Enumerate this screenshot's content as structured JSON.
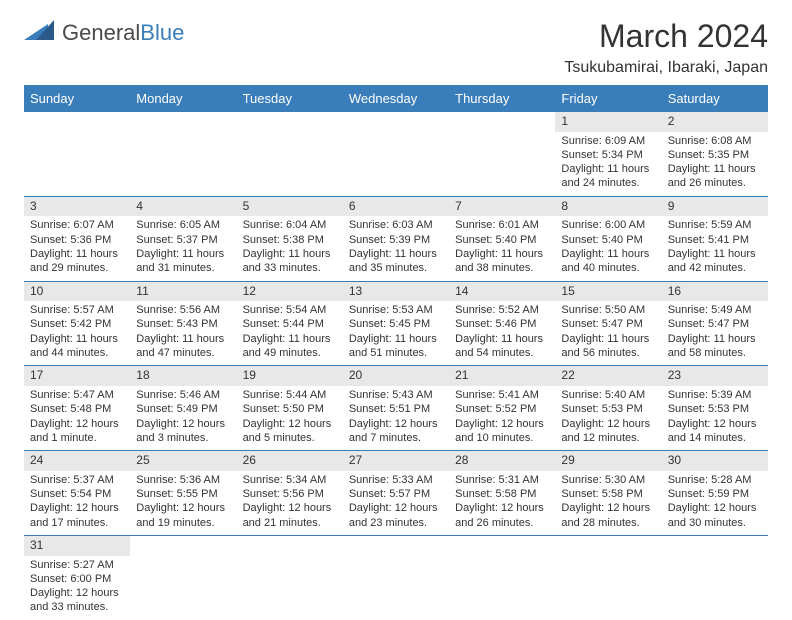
{
  "logo": {
    "text1": "General",
    "text2": "Blue",
    "mark_fill": "#3a7dbb",
    "mark_dark": "#2a5a8a"
  },
  "title": "March 2024",
  "location": "Tsukubamirai, Ibaraki, Japan",
  "header_bg": "#3a7dbb",
  "header_fg": "#ffffff",
  "daynum_bg": "#e8e8e8",
  "divider_color": "#3a7dbb",
  "daynames": [
    "Sunday",
    "Monday",
    "Tuesday",
    "Wednesday",
    "Thursday",
    "Friday",
    "Saturday"
  ],
  "weeks": [
    [
      null,
      null,
      null,
      null,
      null,
      {
        "n": "1",
        "sr": "Sunrise: 6:09 AM",
        "ss": "Sunset: 5:34 PM",
        "dl": "Daylight: 11 hours and 24 minutes."
      },
      {
        "n": "2",
        "sr": "Sunrise: 6:08 AM",
        "ss": "Sunset: 5:35 PM",
        "dl": "Daylight: 11 hours and 26 minutes."
      }
    ],
    [
      {
        "n": "3",
        "sr": "Sunrise: 6:07 AM",
        "ss": "Sunset: 5:36 PM",
        "dl": "Daylight: 11 hours and 29 minutes."
      },
      {
        "n": "4",
        "sr": "Sunrise: 6:05 AM",
        "ss": "Sunset: 5:37 PM",
        "dl": "Daylight: 11 hours and 31 minutes."
      },
      {
        "n": "5",
        "sr": "Sunrise: 6:04 AM",
        "ss": "Sunset: 5:38 PM",
        "dl": "Daylight: 11 hours and 33 minutes."
      },
      {
        "n": "6",
        "sr": "Sunrise: 6:03 AM",
        "ss": "Sunset: 5:39 PM",
        "dl": "Daylight: 11 hours and 35 minutes."
      },
      {
        "n": "7",
        "sr": "Sunrise: 6:01 AM",
        "ss": "Sunset: 5:40 PM",
        "dl": "Daylight: 11 hours and 38 minutes."
      },
      {
        "n": "8",
        "sr": "Sunrise: 6:00 AM",
        "ss": "Sunset: 5:40 PM",
        "dl": "Daylight: 11 hours and 40 minutes."
      },
      {
        "n": "9",
        "sr": "Sunrise: 5:59 AM",
        "ss": "Sunset: 5:41 PM",
        "dl": "Daylight: 11 hours and 42 minutes."
      }
    ],
    [
      {
        "n": "10",
        "sr": "Sunrise: 5:57 AM",
        "ss": "Sunset: 5:42 PM",
        "dl": "Daylight: 11 hours and 44 minutes."
      },
      {
        "n": "11",
        "sr": "Sunrise: 5:56 AM",
        "ss": "Sunset: 5:43 PM",
        "dl": "Daylight: 11 hours and 47 minutes."
      },
      {
        "n": "12",
        "sr": "Sunrise: 5:54 AM",
        "ss": "Sunset: 5:44 PM",
        "dl": "Daylight: 11 hours and 49 minutes."
      },
      {
        "n": "13",
        "sr": "Sunrise: 5:53 AM",
        "ss": "Sunset: 5:45 PM",
        "dl": "Daylight: 11 hours and 51 minutes."
      },
      {
        "n": "14",
        "sr": "Sunrise: 5:52 AM",
        "ss": "Sunset: 5:46 PM",
        "dl": "Daylight: 11 hours and 54 minutes."
      },
      {
        "n": "15",
        "sr": "Sunrise: 5:50 AM",
        "ss": "Sunset: 5:47 PM",
        "dl": "Daylight: 11 hours and 56 minutes."
      },
      {
        "n": "16",
        "sr": "Sunrise: 5:49 AM",
        "ss": "Sunset: 5:47 PM",
        "dl": "Daylight: 11 hours and 58 minutes."
      }
    ],
    [
      {
        "n": "17",
        "sr": "Sunrise: 5:47 AM",
        "ss": "Sunset: 5:48 PM",
        "dl": "Daylight: 12 hours and 1 minute."
      },
      {
        "n": "18",
        "sr": "Sunrise: 5:46 AM",
        "ss": "Sunset: 5:49 PM",
        "dl": "Daylight: 12 hours and 3 minutes."
      },
      {
        "n": "19",
        "sr": "Sunrise: 5:44 AM",
        "ss": "Sunset: 5:50 PM",
        "dl": "Daylight: 12 hours and 5 minutes."
      },
      {
        "n": "20",
        "sr": "Sunrise: 5:43 AM",
        "ss": "Sunset: 5:51 PM",
        "dl": "Daylight: 12 hours and 7 minutes."
      },
      {
        "n": "21",
        "sr": "Sunrise: 5:41 AM",
        "ss": "Sunset: 5:52 PM",
        "dl": "Daylight: 12 hours and 10 minutes."
      },
      {
        "n": "22",
        "sr": "Sunrise: 5:40 AM",
        "ss": "Sunset: 5:53 PM",
        "dl": "Daylight: 12 hours and 12 minutes."
      },
      {
        "n": "23",
        "sr": "Sunrise: 5:39 AM",
        "ss": "Sunset: 5:53 PM",
        "dl": "Daylight: 12 hours and 14 minutes."
      }
    ],
    [
      {
        "n": "24",
        "sr": "Sunrise: 5:37 AM",
        "ss": "Sunset: 5:54 PM",
        "dl": "Daylight: 12 hours and 17 minutes."
      },
      {
        "n": "25",
        "sr": "Sunrise: 5:36 AM",
        "ss": "Sunset: 5:55 PM",
        "dl": "Daylight: 12 hours and 19 minutes."
      },
      {
        "n": "26",
        "sr": "Sunrise: 5:34 AM",
        "ss": "Sunset: 5:56 PM",
        "dl": "Daylight: 12 hours and 21 minutes."
      },
      {
        "n": "27",
        "sr": "Sunrise: 5:33 AM",
        "ss": "Sunset: 5:57 PM",
        "dl": "Daylight: 12 hours and 23 minutes."
      },
      {
        "n": "28",
        "sr": "Sunrise: 5:31 AM",
        "ss": "Sunset: 5:58 PM",
        "dl": "Daylight: 12 hours and 26 minutes."
      },
      {
        "n": "29",
        "sr": "Sunrise: 5:30 AM",
        "ss": "Sunset: 5:58 PM",
        "dl": "Daylight: 12 hours and 28 minutes."
      },
      {
        "n": "30",
        "sr": "Sunrise: 5:28 AM",
        "ss": "Sunset: 5:59 PM",
        "dl": "Daylight: 12 hours and 30 minutes."
      }
    ],
    [
      {
        "n": "31",
        "sr": "Sunrise: 5:27 AM",
        "ss": "Sunset: 6:00 PM",
        "dl": "Daylight: 12 hours and 33 minutes."
      },
      null,
      null,
      null,
      null,
      null,
      null
    ]
  ]
}
